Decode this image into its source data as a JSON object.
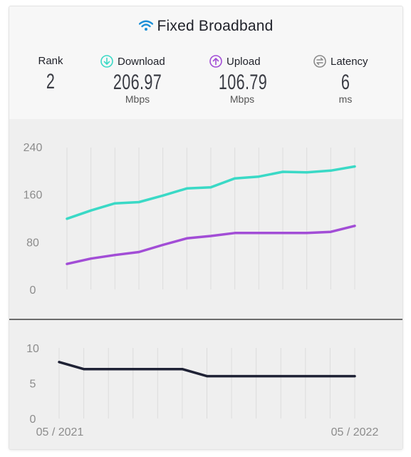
{
  "header": {
    "title": "Fixed Broadband",
    "icon": "wifi-icon"
  },
  "stats": {
    "rank": {
      "label": "Rank",
      "value": "2",
      "unit": ""
    },
    "download": {
      "label": "Download",
      "value": "206.97",
      "unit": "Mbps",
      "icon": "download-arrow-icon",
      "color": "#3ad9c6"
    },
    "upload": {
      "label": "Upload",
      "value": "106.79",
      "unit": "Mbps",
      "icon": "upload-arrow-icon",
      "color": "#a24dd6"
    },
    "latency": {
      "label": "Latency",
      "value": "6",
      "unit": "ms",
      "icon": "latency-arrows-icon",
      "color": "#8a8a8a"
    }
  },
  "chart_data": [
    {
      "type": "line",
      "x": [
        "05/2021",
        "06/2021",
        "07/2021",
        "08/2021",
        "09/2021",
        "10/2021",
        "11/2021",
        "12/2021",
        "01/2022",
        "02/2022",
        "03/2022",
        "04/2022",
        "05/2022"
      ],
      "series": [
        {
          "name": "Download",
          "color": "#3ad9c6",
          "values": [
            119,
            133,
            145,
            147,
            158,
            170,
            172,
            187,
            190,
            198,
            197,
            200,
            207
          ]
        },
        {
          "name": "Upload",
          "color": "#a24dd6",
          "values": [
            43,
            52,
            58,
            63,
            75,
            86,
            90,
            95,
            95,
            95,
            95,
            97,
            107
          ]
        }
      ],
      "yticks": [
        "240",
        "160",
        "80",
        "0"
      ],
      "ylim": [
        0,
        240
      ],
      "grid": "vertical"
    },
    {
      "type": "line",
      "x": [
        "05/2021",
        "06/2021",
        "07/2021",
        "08/2021",
        "09/2021",
        "10/2021",
        "11/2021",
        "12/2021",
        "01/2022",
        "02/2022",
        "03/2022",
        "04/2022",
        "05/2022"
      ],
      "series": [
        {
          "name": "Latency",
          "color": "#1f2235",
          "values": [
            8,
            7,
            7,
            7,
            7,
            7,
            6,
            6,
            6,
            6,
            6,
            6,
            6
          ]
        }
      ],
      "yticks": [
        "10",
        "5",
        "0"
      ],
      "ylim": [
        0,
        10
      ],
      "xtick_labels": [
        "05 / 2021",
        "05 / 2022"
      ],
      "grid": "vertical"
    }
  ]
}
